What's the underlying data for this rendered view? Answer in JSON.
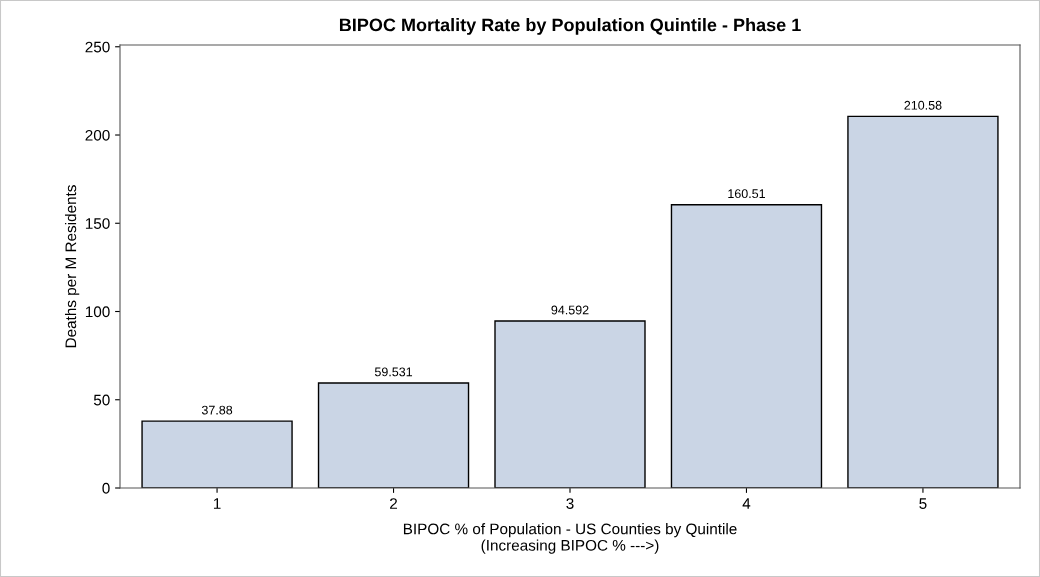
{
  "chart_data": {
    "type": "bar",
    "title": "BIPOC Mortality Rate by Population Quintile - Phase 1",
    "xlabel": "BIPOC % of Population - US Counties by Quintile\n(Increasing BIPOC % --->)",
    "ylabel": "Deaths per M Residents",
    "categories": [
      "1",
      "2",
      "3",
      "4",
      "5"
    ],
    "values": [
      37.88,
      59.531,
      94.592,
      160.51,
      210.58
    ],
    "color": "#cad5e5",
    "ylim": [
      0,
      251
    ],
    "yticks": [
      0,
      50,
      100,
      150,
      200,
      250
    ],
    "data_labels": true,
    "grid": false,
    "legend": false
  }
}
